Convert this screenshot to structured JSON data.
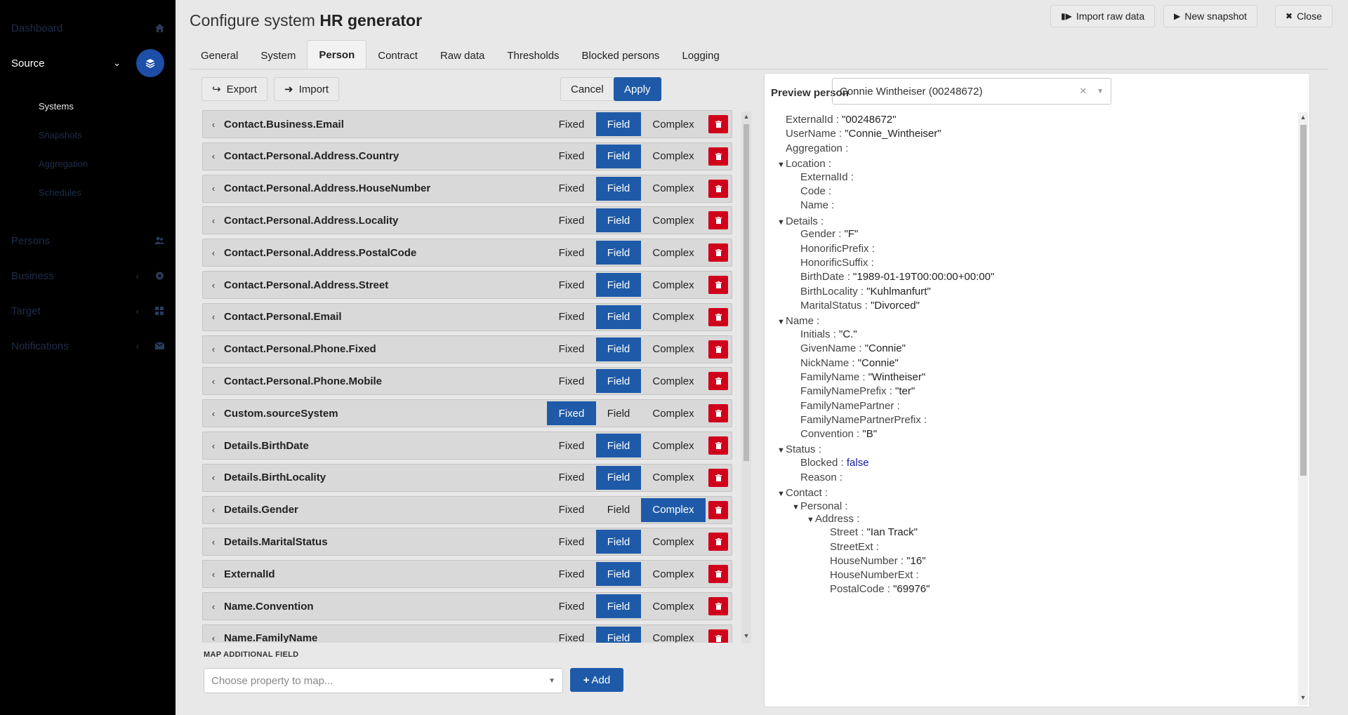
{
  "sidebar": {
    "dashboard": "Dashboard",
    "source": "Source",
    "systems": "Systems",
    "snapshots": "Snapshots",
    "aggregation": "Aggregation",
    "schedules": "Schedules",
    "persons": "Persons",
    "business": "Business",
    "target": "Target",
    "notifications": "Notifications"
  },
  "header": {
    "title_prefix": "Configure system ",
    "title_bold": "HR generator",
    "import_raw": "Import raw data",
    "new_snapshot": "New snapshot",
    "close": "Close"
  },
  "tabs": [
    "General",
    "System",
    "Person",
    "Contract",
    "Raw data",
    "Thresholds",
    "Blocked persons",
    "Logging"
  ],
  "toolbar": {
    "export": "Export",
    "import": "Import",
    "cancel": "Cancel",
    "apply": "Apply"
  },
  "option_labels": {
    "fixed": "Fixed",
    "field": "Field",
    "complex": "Complex"
  },
  "mappings": [
    {
      "name": "Contact.Business.Email",
      "mode": "field"
    },
    {
      "name": "Contact.Personal.Address.Country",
      "mode": "field"
    },
    {
      "name": "Contact.Personal.Address.HouseNumber",
      "mode": "field"
    },
    {
      "name": "Contact.Personal.Address.Locality",
      "mode": "field"
    },
    {
      "name": "Contact.Personal.Address.PostalCode",
      "mode": "field"
    },
    {
      "name": "Contact.Personal.Address.Street",
      "mode": "field"
    },
    {
      "name": "Contact.Personal.Email",
      "mode": "field"
    },
    {
      "name": "Contact.Personal.Phone.Fixed",
      "mode": "field"
    },
    {
      "name": "Contact.Personal.Phone.Mobile",
      "mode": "field"
    },
    {
      "name": "Custom.sourceSystem",
      "mode": "fixed"
    },
    {
      "name": "Details.BirthDate",
      "mode": "field"
    },
    {
      "name": "Details.BirthLocality",
      "mode": "field"
    },
    {
      "name": "Details.Gender",
      "mode": "complex"
    },
    {
      "name": "Details.MaritalStatus",
      "mode": "field"
    },
    {
      "name": "ExternalId",
      "mode": "field"
    },
    {
      "name": "Name.Convention",
      "mode": "field"
    },
    {
      "name": "Name.FamilyName",
      "mode": "field"
    }
  ],
  "map_additional": {
    "label": "MAP ADDITIONAL FIELD",
    "placeholder": "Choose property to map...",
    "add": "Add"
  },
  "preview": {
    "label": "Preview person",
    "selected": "Connie Wintheiser (00248672)",
    "tree": [
      {
        "d": 0,
        "k": "ExternalId",
        "v": "\"00248672\""
      },
      {
        "d": 0,
        "k": "UserName",
        "v": "\"Connie_Wintheiser\""
      },
      {
        "d": 0,
        "k": "Aggregation",
        "v": ""
      },
      {
        "d": 0,
        "k": "Location",
        "v": "",
        "open": true
      },
      {
        "d": 1,
        "k": "ExternalId",
        "v": ""
      },
      {
        "d": 1,
        "k": "Code",
        "v": ""
      },
      {
        "d": 1,
        "k": "Name",
        "v": ""
      },
      {
        "d": 0,
        "k": "Details",
        "v": "",
        "open": true
      },
      {
        "d": 1,
        "k": "Gender",
        "v": "\"F\""
      },
      {
        "d": 1,
        "k": "HonorificPrefix",
        "v": ""
      },
      {
        "d": 1,
        "k": "HonorificSuffix",
        "v": ""
      },
      {
        "d": 1,
        "k": "BirthDate",
        "v": "\"1989-01-19T00:00:00+00:00\""
      },
      {
        "d": 1,
        "k": "BirthLocality",
        "v": "\"Kuhlmanfurt\""
      },
      {
        "d": 1,
        "k": "MaritalStatus",
        "v": "\"Divorced\""
      },
      {
        "d": 0,
        "k": "Name",
        "v": "",
        "open": true
      },
      {
        "d": 1,
        "k": "Initials",
        "v": "\"C.\""
      },
      {
        "d": 1,
        "k": "GivenName",
        "v": "\"Connie\""
      },
      {
        "d": 1,
        "k": "NickName",
        "v": "\"Connie\""
      },
      {
        "d": 1,
        "k": "FamilyName",
        "v": "\"Wintheiser\""
      },
      {
        "d": 1,
        "k": "FamilyNamePrefix",
        "v": "\"ter\""
      },
      {
        "d": 1,
        "k": "FamilyNamePartner",
        "v": ""
      },
      {
        "d": 1,
        "k": "FamilyNamePartnerPrefix",
        "v": ""
      },
      {
        "d": 1,
        "k": "Convention",
        "v": "\"B\""
      },
      {
        "d": 0,
        "k": "Status",
        "v": "",
        "open": true
      },
      {
        "d": 1,
        "k": "Blocked",
        "v": "false",
        "bool": true
      },
      {
        "d": 1,
        "k": "Reason",
        "v": ""
      },
      {
        "d": 0,
        "k": "Contact",
        "v": "",
        "open": true
      },
      {
        "d": 1,
        "k": "Personal",
        "v": "",
        "open": true
      },
      {
        "d": 2,
        "k": "Address",
        "v": "",
        "open": true
      },
      {
        "d": 3,
        "k": "Street",
        "v": "\"Ian Track\""
      },
      {
        "d": 3,
        "k": "StreetExt",
        "v": ""
      },
      {
        "d": 3,
        "k": "HouseNumber",
        "v": "\"16\""
      },
      {
        "d": 3,
        "k": "HouseNumberExt",
        "v": ""
      },
      {
        "d": 3,
        "k": "PostalCode",
        "v": "\"69976\""
      }
    ]
  },
  "colors": {
    "accent": "#1e5aa8",
    "danger": "#d0021b",
    "sidebar_bg": "#000000"
  }
}
